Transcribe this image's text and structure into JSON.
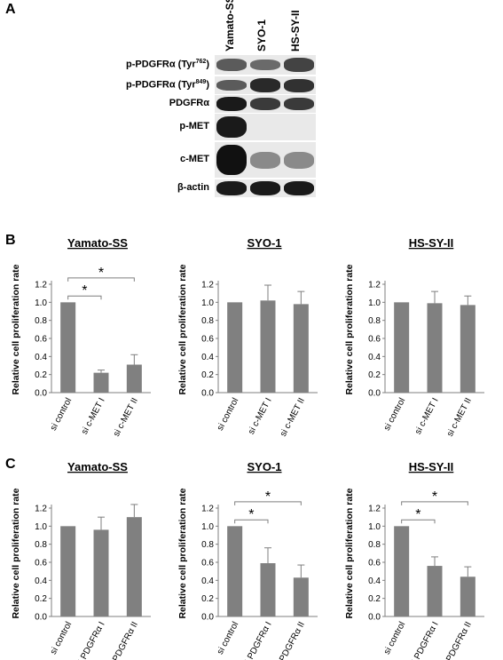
{
  "panel_a": {
    "letter": "A",
    "cell_lines": [
      "Yamato-SS",
      "SYO-1",
      "HS-SY-II"
    ],
    "rows": [
      {
        "name": "p-PDGFRα (Tyr",
        "sup": "762",
        "tail": ")",
        "intensity": [
          0.55,
          0.45,
          0.7
        ]
      },
      {
        "name": "p-PDGFRα (Tyr",
        "sup": "849",
        "tail": ")",
        "intensity": [
          0.55,
          0.85,
          0.8
        ]
      },
      {
        "name": "PDGFRα",
        "sup": "",
        "tail": "",
        "intensity": [
          0.95,
          0.75,
          0.75
        ]
      },
      {
        "name": "p-MET",
        "sup": "",
        "tail": "",
        "intensity": [
          0.95,
          0.0,
          0.0
        ]
      },
      {
        "name": "c-MET",
        "sup": "",
        "tail": "",
        "intensity": [
          1.0,
          0.25,
          0.25
        ]
      },
      {
        "name": "β-actin",
        "sup": "",
        "tail": "",
        "intensity": [
          0.95,
          0.95,
          0.95
        ]
      }
    ]
  },
  "panel_b_letter": "B",
  "panel_c_letter": "C",
  "chart_data": [
    {
      "type": "bar",
      "panel": "B",
      "title": "Yamato-SS",
      "categories": [
        "si control",
        "si c-MET I",
        "si c-MET II"
      ],
      "values": [
        1.0,
        0.22,
        0.31
      ],
      "errors": [
        0.0,
        0.03,
        0.11
      ],
      "ylabel": "Relative cell proliferation rate",
      "ylim": [
        0,
        1.2
      ],
      "yticks": [
        "0.0",
        "0.2",
        "0.4",
        "0.6",
        "0.8",
        "1.0",
        "1.2"
      ],
      "significance": [
        {
          "from": 0,
          "to": 1,
          "label": "*"
        },
        {
          "from": 0,
          "to": 2,
          "label": "*"
        }
      ]
    },
    {
      "type": "bar",
      "panel": "B",
      "title": "SYO-1",
      "categories": [
        "si control",
        "si c-MET I",
        "si c-MET II"
      ],
      "values": [
        1.0,
        1.02,
        0.98
      ],
      "errors": [
        0.0,
        0.17,
        0.14
      ],
      "ylabel": "Relative cell proliferation rate",
      "ylim": [
        0,
        1.2
      ],
      "yticks": [
        "0.0",
        "0.2",
        "0.4",
        "0.6",
        "0.8",
        "1.0",
        "1.2"
      ],
      "significance": []
    },
    {
      "type": "bar",
      "panel": "B",
      "title": "HS-SY-II",
      "categories": [
        "si control",
        "si c-MET I",
        "si c-MET II"
      ],
      "values": [
        1.0,
        0.99,
        0.97
      ],
      "errors": [
        0.0,
        0.13,
        0.1
      ],
      "ylabel": "Relative cell proliferation rate",
      "ylim": [
        0,
        1.2
      ],
      "yticks": [
        "0.0",
        "0.2",
        "0.4",
        "0.6",
        "0.8",
        "1.0",
        "1.2"
      ],
      "significance": []
    },
    {
      "type": "bar",
      "panel": "C",
      "title": "Yamato-SS",
      "categories": [
        "si control",
        "si PDGFRα I",
        "si PDGFRα II"
      ],
      "values": [
        1.0,
        0.96,
        1.1
      ],
      "errors": [
        0.0,
        0.14,
        0.14
      ],
      "ylabel": "Relative cell proliferation rate",
      "ylim": [
        0,
        1.2
      ],
      "yticks": [
        "0.0",
        "0.2",
        "0.4",
        "0.6",
        "0.8",
        "1.0",
        "1.2"
      ],
      "significance": []
    },
    {
      "type": "bar",
      "panel": "C",
      "title": "SYO-1",
      "categories": [
        "si control",
        "si PDGFRα I",
        "si PDGFRα II"
      ],
      "values": [
        1.0,
        0.59,
        0.43
      ],
      "errors": [
        0.0,
        0.17,
        0.14
      ],
      "ylabel": "Relative cell proliferation rate",
      "ylim": [
        0,
        1.2
      ],
      "yticks": [
        "0.0",
        "0.2",
        "0.4",
        "0.6",
        "0.8",
        "1.0",
        "1.2"
      ],
      "significance": [
        {
          "from": 0,
          "to": 1,
          "label": "*"
        },
        {
          "from": 0,
          "to": 2,
          "label": "*"
        }
      ]
    },
    {
      "type": "bar",
      "panel": "C",
      "title": "HS-SY-II",
      "categories": [
        "si control",
        "si PDGFRα I",
        "si PDGFRα II"
      ],
      "values": [
        1.0,
        0.56,
        0.44
      ],
      "errors": [
        0.0,
        0.1,
        0.11
      ],
      "ylabel": "Relative cell proliferation rate",
      "ylim": [
        0,
        1.2
      ],
      "yticks": [
        "0.0",
        "0.2",
        "0.4",
        "0.6",
        "0.8",
        "1.0",
        "1.2"
      ],
      "significance": [
        {
          "from": 0,
          "to": 1,
          "label": "*"
        },
        {
          "from": 0,
          "to": 2,
          "label": "*"
        }
      ]
    }
  ],
  "colors": {
    "bar": "#808080",
    "axis": "#7f7f7f",
    "band": "#111111"
  }
}
